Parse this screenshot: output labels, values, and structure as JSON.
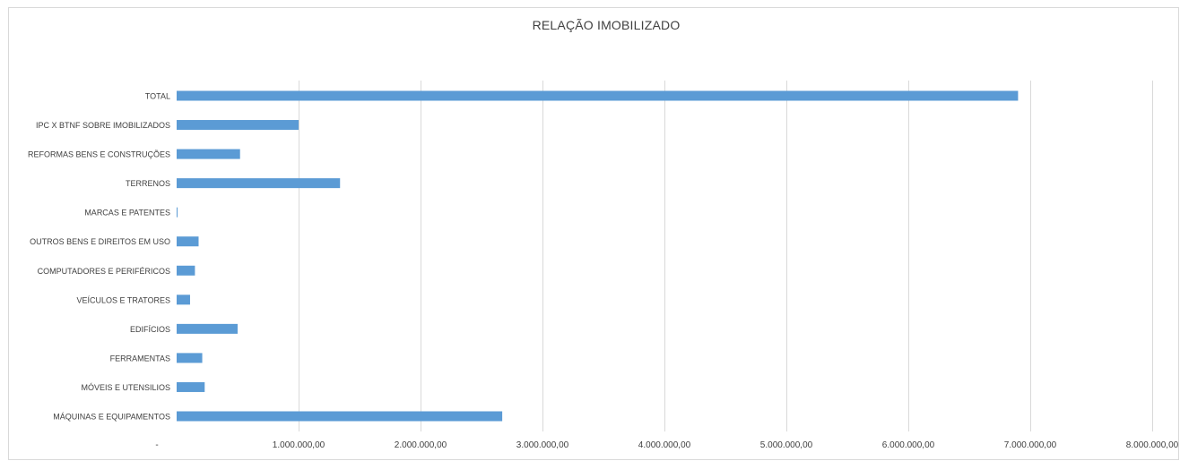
{
  "chart_data": {
    "type": "bar",
    "orientation": "horizontal",
    "title": "RELAÇÃO IMOBILIZADO",
    "categories": [
      "TOTAL",
      "IPC X BTNF SOBRE IMOBILIZADOS",
      "REFORMAS BENS E CONSTRUÇÕES",
      "TERRENOS",
      "MARCAS E PATENTES",
      "OUTROS BENS E DIREITOS EM USO",
      "COMPUTADORES E PERIFÉRICOS",
      "VEÍCULOS E TRATORES",
      "EDIFÍCIOS",
      "FERRAMENTAS",
      "MÓVEIS E UTENSILIOS",
      "MÁQUINAS E EQUIPAMENTOS"
    ],
    "values": [
      6900000,
      1000000,
      520000,
      1340000,
      5000,
      180000,
      150000,
      110000,
      500000,
      210000,
      230000,
      2670000
    ],
    "xlim": [
      0,
      8000000
    ],
    "x_ticks": [
      0,
      1000000,
      2000000,
      3000000,
      4000000,
      5000000,
      6000000,
      7000000,
      8000000
    ],
    "x_tick_labels": [
      "-",
      "1.000.000,00",
      "2.000.000,00",
      "3.000.000,00",
      "4.000.000,00",
      "5.000.000,00",
      "6.000.000,00",
      "7.000.000,00",
      "8.000.000,00"
    ],
    "grid": "vertical",
    "legend": "none",
    "bar_color": "#5b9bd5",
    "grid_color": "#d9d9d9"
  }
}
